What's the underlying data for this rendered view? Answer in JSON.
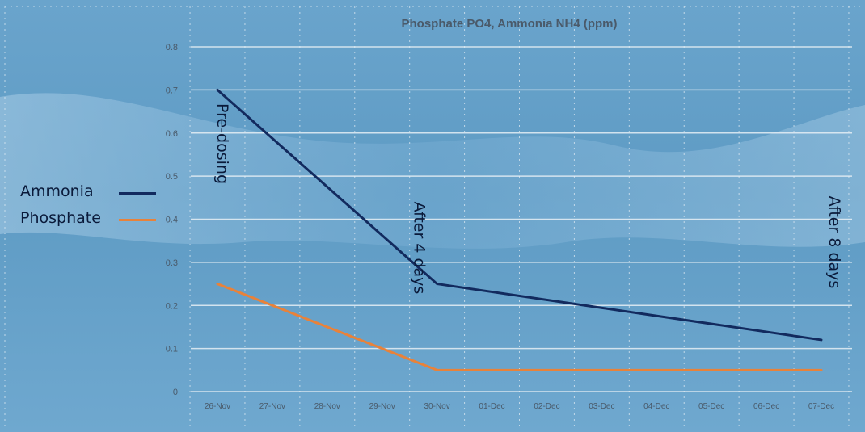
{
  "chart_data": {
    "type": "line",
    "title": "Phosphate PO4, Ammonia NH4 (ppm)",
    "xlabel": "",
    "ylabel": "",
    "categories": [
      "26-Nov",
      "27-Nov",
      "28-Nov",
      "29-Nov",
      "30-Nov",
      "01-Dec",
      "02-Dec",
      "03-Dec",
      "04-Dec",
      "05-Dec",
      "06-Dec",
      "07-Dec"
    ],
    "ylim": [
      0,
      0.8
    ],
    "yticks": [
      "0",
      "0.1",
      "0.2",
      "0.3",
      "0.4",
      "0.5",
      "0.6",
      "0.7",
      "0.8"
    ],
    "grid": "horizontal gridlines, dotted vertical gridlines",
    "legend_position": "left",
    "series": [
      {
        "name": "Ammonia",
        "color": "#122a5e",
        "points": [
          {
            "x": "26-Nov",
            "y": 0.7
          },
          {
            "x": "30-Nov",
            "y": 0.25
          },
          {
            "x": "07-Dec",
            "y": 0.12
          }
        ]
      },
      {
        "name": "Phosphate",
        "color": "#e8823a",
        "points": [
          {
            "x": "26-Nov",
            "y": 0.25
          },
          {
            "x": "30-Nov",
            "y": 0.05
          },
          {
            "x": "07-Dec",
            "y": 0.05
          }
        ]
      }
    ],
    "annotations": [
      {
        "text": "Pre-dosing",
        "x": "26-Nov",
        "rotation": "vertical"
      },
      {
        "text": "After 4 days",
        "x": "30-Nov",
        "rotation": "vertical"
      },
      {
        "text": "After 8 days",
        "x": "07-Dec",
        "rotation": "vertical"
      }
    ],
    "colors": {
      "background": "#5f9ec7",
      "gridline": "#e6eef5",
      "text": "#4a5a6a",
      "annotation": "#0a1a3a"
    }
  }
}
